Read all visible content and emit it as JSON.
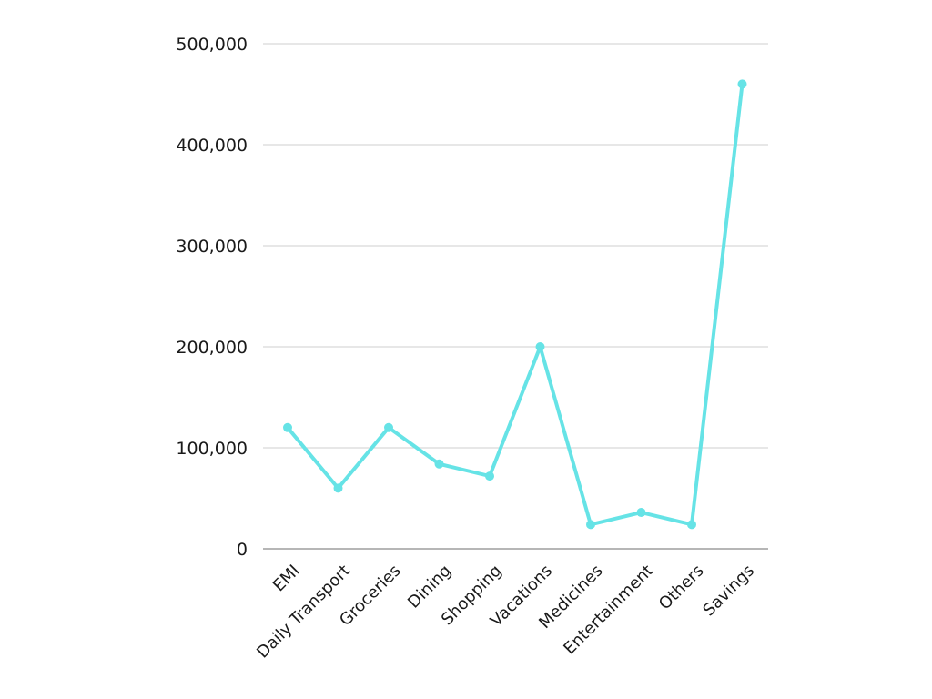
{
  "chart_data": {
    "type": "line",
    "categories": [
      "EMI",
      "Daily Transport",
      "Groceries",
      "Dining",
      "Shopping",
      "Vacations",
      "Medicines",
      "Entertainment",
      "Others",
      "Savings"
    ],
    "series": [
      {
        "values": [
          120000,
          60000,
          120000,
          84000,
          72000,
          200000,
          24000,
          36000,
          24000,
          460000
        ]
      }
    ],
    "yticks": [
      "0",
      "100,000",
      "200,000",
      "300,000",
      "400,000",
      "500,000"
    ],
    "ylim": [
      0,
      500000
    ],
    "grid": true,
    "line_color": "#66e3e6",
    "title": "",
    "xlabel": "",
    "ylabel": ""
  }
}
